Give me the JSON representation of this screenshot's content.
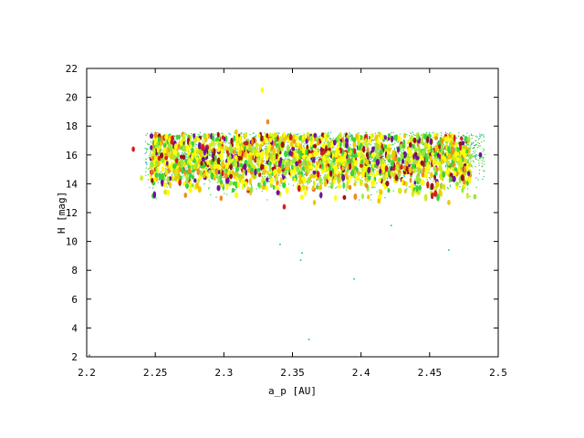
{
  "chart_data": {
    "type": "scatter",
    "xlabel": "a_p [AU]",
    "ylabel": "H [mag]",
    "xlim": [
      2.2,
      2.5
    ],
    "ylim": [
      2,
      22
    ],
    "x_ticks": [
      "2.2",
      "2.25",
      "2.3",
      "2.35",
      "2.4",
      "2.45",
      "2.5"
    ],
    "y_ticks": [
      "2",
      "4",
      "6",
      "8",
      "10",
      "12",
      "14",
      "16",
      "18",
      "20",
      "22"
    ],
    "grid": false,
    "legend": "none",
    "colors": {
      "green": "#3cd23c",
      "light_green": "#9be63c",
      "yellow_green": "#d2eb1e",
      "yellow": "#ffff00",
      "gold": "#f0c800",
      "orange": "#f08c1e",
      "red": "#d21e1e",
      "dark_red": "#961414",
      "purple": "#6e1496",
      "cyan": "#1eb4b4"
    },
    "cloud_summary": {
      "x_range": [
        2.232,
        2.49
      ],
      "h_center": 15.7,
      "h_spread": 1.1,
      "description": "dense band of points between H ~13 and ~17.5"
    },
    "notable_points": [
      {
        "x": 2.328,
        "y": 20.5,
        "color": "#ffff00"
      },
      {
        "x": 2.332,
        "y": 18.3,
        "color": "#f08c1e"
      },
      {
        "x": 2.344,
        "y": 12.4,
        "color": "#d21e1e"
      },
      {
        "x": 2.341,
        "y": 9.8,
        "color": "#1eb4b4"
      },
      {
        "x": 2.357,
        "y": 9.2,
        "color": "#1eb4b4"
      },
      {
        "x": 2.356,
        "y": 8.7,
        "color": "#1eb4b4"
      },
      {
        "x": 2.395,
        "y": 7.4,
        "color": "#1eb4b4"
      },
      {
        "x": 2.362,
        "y": 3.2,
        "color": "#1eb4b4"
      },
      {
        "x": 2.202,
        "y": 2.1,
        "color": "#1e8c1e"
      },
      {
        "x": 2.464,
        "y": 9.4,
        "color": "#1eb4b4"
      },
      {
        "x": 2.234,
        "y": 16.4,
        "color": "#d21e1e"
      },
      {
        "x": 2.24,
        "y": 14.4,
        "color": "#d2eb1e"
      },
      {
        "x": 2.487,
        "y": 16.0,
        "color": "#6e1496"
      },
      {
        "x": 2.483,
        "y": 13.1,
        "color": "#9be63c"
      },
      {
        "x": 2.464,
        "y": 12.7,
        "color": "#f0c800"
      },
      {
        "x": 2.422,
        "y": 11.1,
        "color": "#1eb4b4"
      },
      {
        "x": 2.255,
        "y": 14.1,
        "color": "#6e1496"
      },
      {
        "x": 2.272,
        "y": 13.2,
        "color": "#f08c1e"
      },
      {
        "x": 2.298,
        "y": 13.0,
        "color": "#f08c1e"
      },
      {
        "x": 2.366,
        "y": 12.7,
        "color": "#f0c800"
      },
      {
        "x": 2.413,
        "y": 12.8,
        "color": "#f0c800"
      },
      {
        "x": 2.452,
        "y": 13.2,
        "color": "#d21e1e"
      },
      {
        "x": 2.309,
        "y": 17.6,
        "color": "#f0c800"
      },
      {
        "x": 2.262,
        "y": 16.9,
        "color": "#d21e1e"
      },
      {
        "x": 2.436,
        "y": 16.7,
        "color": "#961414"
      }
    ]
  }
}
